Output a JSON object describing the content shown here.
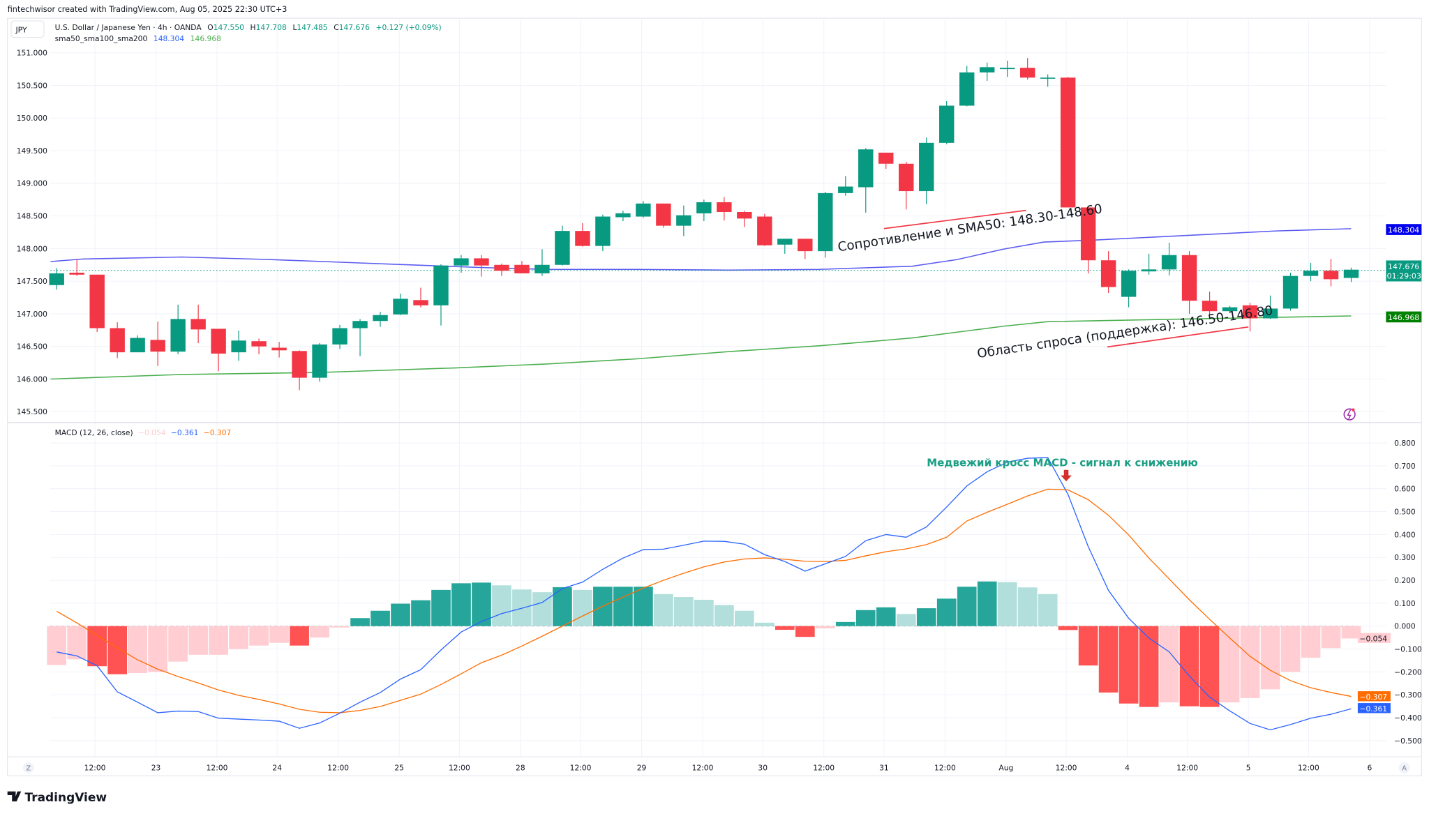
{
  "attribution": "fintechwisor created with TradingView.com, Aug 05, 2025 22:30 UTC+3",
  "symbol_button": "JPY",
  "legend": {
    "title": "U.S. Dollar / Japanese Yen · 4h · OANDA",
    "o_label": "O",
    "o": "147.550",
    "h_label": "H",
    "h": "147.708",
    "l_label": "L",
    "l": "147.485",
    "c_label": "C",
    "c": "147.676",
    "change": "+0.127 (+0.09%)",
    "sma_name": "sma50_sma100_sma200",
    "sma50": "148.304",
    "sma200": "146.968"
  },
  "price_badges": {
    "sma50": "148.304",
    "last_price": "147.676",
    "countdown": "01:29:03",
    "sma200": "146.968"
  },
  "macd_legend": {
    "name": "MACD (12, 26, close)",
    "hist": "−0.054",
    "macd": "−0.361",
    "signal": "−0.307"
  },
  "macd_badges": {
    "hist": "−0.054",
    "signal": "−0.307",
    "macd": "−0.361"
  },
  "annotations": {
    "resistance": "Сопротивление и SMA50: 148.30-148.60",
    "support": "Область спроса (поддержка): 146.50-146.80",
    "macd_cross": "Медвежий кросс MACD - сигнал к снижению"
  },
  "x_axis": {
    "labels": [
      "12:00",
      "23",
      "12:00",
      "24",
      "12:00",
      "25",
      "12:00",
      "28",
      "12:00",
      "29",
      "12:00",
      "30",
      "12:00",
      "31",
      "12:00",
      "Aug",
      "12:00",
      "4",
      "12:00",
      "5",
      "12:00",
      "6"
    ],
    "left_button": "Z",
    "right_button": "A"
  },
  "footer_logo": "TradingView",
  "colors": {
    "up": "#089981",
    "down": "#f23645",
    "sma50": "#5b5bf0",
    "sma200": "#4caf50",
    "macd": "#2962ff",
    "signal": "#ff6d00",
    "hist_up_strong": "#26a69a",
    "hist_up_weak": "#b2dfdb",
    "hist_down_strong": "#ff5252",
    "hist_down_weak": "#ffcdd2",
    "annotation_green": "#1a9e84",
    "annotation_line": "#f23645"
  },
  "chart_data": [
    {
      "type": "candlestick",
      "ylim": [
        145.5,
        151.0
      ],
      "y_ticks": [
        "151.000",
        "150.500",
        "150.000",
        "149.500",
        "149.000",
        "148.500",
        "148.000",
        "147.500",
        "147.000",
        "146.500",
        "146.000",
        "145.500"
      ],
      "grid": true,
      "ohlc": [
        [
          147.44,
          147.7,
          147.37,
          147.62
        ],
        [
          147.63,
          147.83,
          147.58,
          147.6
        ],
        [
          147.6,
          147.6,
          146.72,
          146.78
        ],
        [
          146.78,
          146.87,
          146.32,
          146.41
        ],
        [
          146.41,
          146.67,
          146.41,
          146.63
        ],
        [
          146.6,
          146.88,
          146.2,
          146.42
        ],
        [
          146.42,
          147.14,
          146.38,
          146.92
        ],
        [
          146.92,
          147.14,
          146.55,
          146.76
        ],
        [
          146.77,
          146.77,
          146.12,
          146.39
        ],
        [
          146.41,
          146.74,
          146.28,
          146.59
        ],
        [
          146.58,
          146.62,
          146.38,
          146.5
        ],
        [
          146.48,
          146.57,
          146.33,
          146.44
        ],
        [
          146.43,
          146.44,
          145.83,
          146.02
        ],
        [
          146.02,
          146.55,
          145.96,
          146.53
        ],
        [
          146.53,
          146.83,
          146.46,
          146.78
        ],
        [
          146.78,
          146.92,
          146.35,
          146.89
        ],
        [
          146.89,
          147.03,
          146.8,
          146.98
        ],
        [
          146.99,
          147.31,
          146.98,
          147.23
        ],
        [
          147.21,
          147.4,
          147.1,
          147.13
        ],
        [
          147.13,
          147.76,
          146.82,
          147.74
        ],
        [
          147.74,
          147.9,
          147.63,
          147.85
        ],
        [
          147.85,
          147.9,
          147.57,
          147.74
        ],
        [
          147.75,
          147.77,
          147.58,
          147.66
        ],
        [
          147.75,
          147.81,
          147.62,
          147.62
        ],
        [
          147.62,
          147.99,
          147.58,
          147.75
        ],
        [
          147.75,
          148.35,
          147.74,
          148.27
        ],
        [
          148.27,
          148.39,
          148.03,
          148.04
        ],
        [
          148.04,
          148.52,
          147.96,
          148.49
        ],
        [
          148.48,
          148.58,
          148.42,
          148.54
        ],
        [
          148.49,
          148.73,
          148.47,
          148.69
        ],
        [
          148.69,
          148.69,
          148.32,
          148.35
        ],
        [
          148.35,
          148.66,
          148.19,
          148.51
        ],
        [
          148.54,
          148.75,
          148.42,
          148.71
        ],
        [
          148.71,
          148.79,
          148.43,
          148.56
        ],
        [
          148.56,
          148.58,
          148.33,
          148.46
        ],
        [
          148.49,
          148.53,
          148.04,
          148.05
        ],
        [
          148.06,
          148.15,
          147.92,
          148.15
        ],
        [
          148.15,
          148.15,
          147.84,
          147.96
        ],
        [
          147.96,
          148.87,
          147.86,
          148.85
        ],
        [
          148.85,
          149.11,
          148.81,
          148.95
        ],
        [
          148.94,
          149.54,
          148.55,
          149.52
        ],
        [
          149.47,
          149.47,
          149.22,
          149.3
        ],
        [
          149.3,
          149.33,
          148.6,
          148.88
        ],
        [
          148.88,
          149.7,
          148.68,
          149.62
        ],
        [
          149.62,
          150.26,
          149.6,
          150.19
        ],
        [
          150.19,
          150.8,
          150.18,
          150.7
        ],
        [
          150.7,
          150.85,
          150.57,
          150.78
        ],
        [
          150.75,
          150.88,
          150.63,
          150.77
        ],
        [
          150.77,
          150.92,
          150.59,
          150.62
        ],
        [
          150.61,
          150.67,
          150.48,
          150.62
        ],
        [
          150.62,
          150.63,
          148.63,
          148.63
        ],
        [
          148.63,
          148.65,
          147.62,
          147.82
        ],
        [
          147.82,
          147.96,
          147.32,
          147.41
        ],
        [
          147.26,
          147.68,
          147.1,
          147.66
        ],
        [
          147.65,
          147.92,
          147.6,
          147.68
        ],
        [
          147.68,
          148.09,
          147.59,
          147.9
        ],
        [
          147.9,
          147.96,
          147.0,
          147.2
        ],
        [
          147.2,
          147.34,
          146.98,
          147.04
        ],
        [
          147.04,
          147.12,
          147.03,
          147.1
        ],
        [
          147.13,
          147.17,
          146.73,
          146.93
        ],
        [
          146.93,
          147.28,
          146.92,
          147.08
        ],
        [
          147.08,
          147.63,
          147.05,
          147.58
        ],
        [
          147.58,
          147.78,
          147.5,
          147.66
        ],
        [
          147.66,
          147.84,
          147.42,
          147.53
        ],
        [
          147.55,
          147.708,
          147.485,
          147.676
        ]
      ],
      "series": [
        {
          "name": "sma50",
          "points": [
            [
              -0.3,
              147.8
            ],
            [
              1.3,
              147.84
            ],
            [
              6.2,
              147.87
            ],
            [
              10.7,
              147.83
            ],
            [
              16.6,
              147.76
            ],
            [
              20.9,
              147.71
            ],
            [
              24.2,
              147.68
            ],
            [
              28.7,
              147.68
            ],
            [
              33.2,
              147.67
            ],
            [
              37.7,
              147.68
            ],
            [
              42.3,
              147.73
            ],
            [
              44.5,
              147.83
            ],
            [
              46.8,
              147.99
            ],
            [
              48.8,
              148.1
            ],
            [
              51.3,
              148.13
            ],
            [
              55.8,
              148.2
            ],
            [
              60.3,
              148.27
            ],
            [
              64,
              148.304
            ]
          ]
        },
        {
          "name": "sma200",
          "points": [
            [
              -0.3,
              146.0
            ],
            [
              6.2,
              146.07
            ],
            [
              13,
              146.1
            ],
            [
              19.7,
              146.17
            ],
            [
              24.2,
              146.23
            ],
            [
              28.7,
              146.31
            ],
            [
              33.2,
              146.42
            ],
            [
              37.7,
              146.51
            ],
            [
              42.3,
              146.63
            ],
            [
              46.8,
              146.81
            ],
            [
              49,
              146.88
            ],
            [
              55.8,
              146.92
            ],
            [
              64,
              146.968
            ]
          ]
        }
      ],
      "last_price": 147.676
    },
    {
      "type": "bar+line",
      "ylim": [
        -0.55,
        0.85
      ],
      "y_ticks": [
        "0.800",
        "0.700",
        "0.600",
        "0.500",
        "0.400",
        "0.300",
        "0.200",
        "0.100",
        "0.000",
        "−0.100",
        "−0.200",
        "−0.300",
        "−0.400",
        "−0.500"
      ],
      "y_tick_values": [
        0.8,
        0.7,
        0.6,
        0.5,
        0.4,
        0.3,
        0.2,
        0.1,
        0,
        -0.1,
        -0.2,
        -0.3,
        -0.4,
        -0.5
      ],
      "histogram": [
        -0.17,
        -0.145,
        -0.175,
        -0.21,
        -0.205,
        -0.2,
        -0.155,
        -0.125,
        -0.125,
        -0.1,
        -0.085,
        -0.073,
        -0.085,
        -0.05,
        -0.006,
        0.035,
        0.067,
        0.098,
        0.113,
        0.158,
        0.187,
        0.19,
        0.178,
        0.16,
        0.148,
        0.17,
        0.158,
        0.172,
        0.172,
        0.172,
        0.14,
        0.127,
        0.115,
        0.092,
        0.067,
        0.015,
        -0.016,
        -0.047,
        -0.01,
        0.018,
        0.07,
        0.082,
        0.053,
        0.078,
        0.12,
        0.172,
        0.195,
        0.192,
        0.169,
        0.14,
        -0.017,
        -0.172,
        -0.29,
        -0.338,
        -0.353,
        -0.333,
        -0.35,
        -0.353,
        -0.333,
        -0.314,
        -0.276,
        -0.2,
        -0.138,
        -0.096,
        -0.054
      ],
      "macd": [
        -0.113,
        -0.13,
        -0.173,
        -0.287,
        -0.332,
        -0.378,
        -0.371,
        -0.373,
        -0.402,
        -0.406,
        -0.41,
        -0.415,
        -0.446,
        -0.423,
        -0.38,
        -0.332,
        -0.29,
        -0.231,
        -0.19,
        -0.104,
        -0.026,
        0.02,
        0.055,
        0.078,
        0.103,
        0.164,
        0.192,
        0.248,
        0.297,
        0.334,
        0.336,
        0.353,
        0.371,
        0.37,
        0.358,
        0.312,
        0.282,
        0.24,
        0.272,
        0.304,
        0.373,
        0.4,
        0.388,
        0.433,
        0.52,
        0.612,
        0.674,
        0.716,
        0.733,
        0.736,
        0.575,
        0.347,
        0.156,
        0.034,
        -0.052,
        -0.112,
        -0.218,
        -0.31,
        -0.37,
        -0.425,
        -0.453,
        -0.43,
        -0.402,
        -0.385,
        -0.361
      ],
      "signal": [
        0.065,
        0.014,
        -0.04,
        -0.095,
        -0.147,
        -0.188,
        -0.22,
        -0.248,
        -0.279,
        -0.302,
        -0.32,
        -0.34,
        -0.363,
        -0.376,
        -0.378,
        -0.368,
        -0.351,
        -0.324,
        -0.297,
        -0.255,
        -0.208,
        -0.16,
        -0.127,
        -0.087,
        -0.044,
        0.0,
        0.044,
        0.087,
        0.127,
        0.166,
        0.2,
        0.231,
        0.259,
        0.28,
        0.293,
        0.298,
        0.292,
        0.283,
        0.282,
        0.287,
        0.307,
        0.325,
        0.337,
        0.356,
        0.388,
        0.459,
        0.497,
        0.532,
        0.568,
        0.598,
        0.595,
        0.552,
        0.484,
        0.398,
        0.297,
        0.206,
        0.115,
        0.03,
        -0.052,
        -0.132,
        -0.193,
        -0.238,
        -0.269,
        -0.29,
        -0.307
      ],
      "grid": true
    }
  ]
}
